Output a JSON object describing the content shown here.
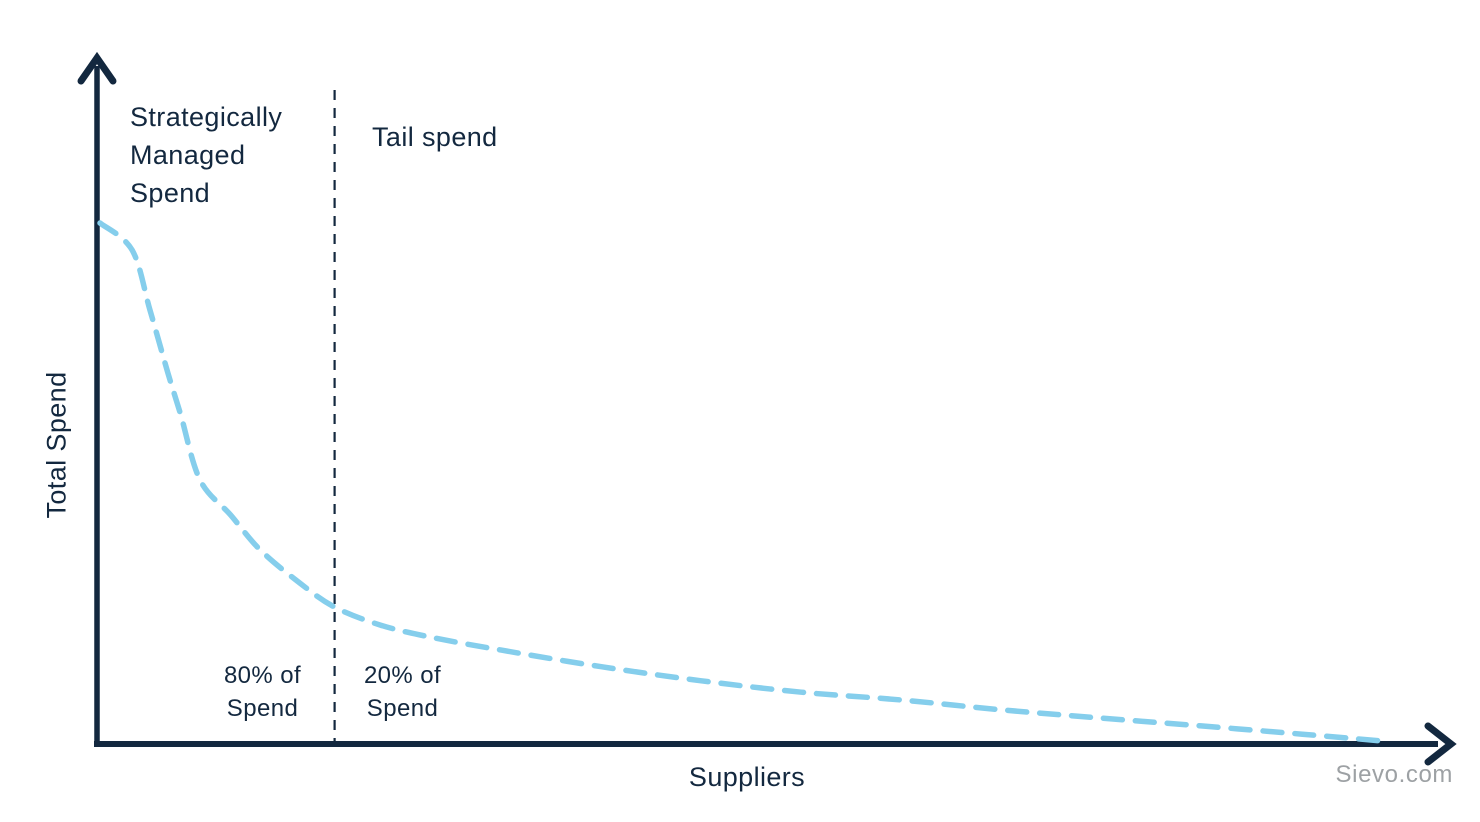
{
  "colors": {
    "navy": "#13283F",
    "curve_blue": "#85CEEC",
    "watermark_gray": "#9DA1A4",
    "background": "#FFFFFF"
  },
  "chart_data": {
    "type": "line",
    "title": "",
    "xlabel": "Suppliers",
    "ylabel": "Total Spend",
    "line_style": "dashed",
    "grid": false,
    "legend": false,
    "axis_tick_labels": "none",
    "x_range_percent": [
      0,
      100
    ],
    "y_range_percent": [
      0,
      100
    ],
    "divider_x_percent": 18.3,
    "annotations": {
      "left_region_label": "Strategically\nManaged\nSpend",
      "right_region_label": "Tail spend",
      "left_share_label": "80% of\nSpend",
      "right_share_label": "20% of\nSpend"
    },
    "series": [
      {
        "name": "supplier-spend-curve",
        "points": [
          [
            0,
            100
          ],
          [
            2.5,
            94.8
          ],
          [
            3.9,
            83.2
          ],
          [
            5.3,
            71.1
          ],
          [
            6.3,
            63.0
          ],
          [
            7.8,
            50.5
          ],
          [
            10.2,
            43.7
          ],
          [
            12.5,
            37.0
          ],
          [
            15.6,
            30.6
          ],
          [
            18.3,
            26.0
          ],
          [
            21.9,
            22.5
          ],
          [
            25.8,
            20.2
          ],
          [
            31.3,
            17.7
          ],
          [
            39.1,
            14.5
          ],
          [
            46.9,
            11.8
          ],
          [
            54.7,
            9.6
          ],
          [
            62.5,
            8.1
          ],
          [
            70.3,
            6.2
          ],
          [
            78.1,
            4.6
          ],
          [
            85.9,
            3.1
          ],
          [
            93.8,
            1.5
          ],
          [
            100,
            0.2
          ]
        ]
      }
    ]
  },
  "watermark": "Sievo.com"
}
